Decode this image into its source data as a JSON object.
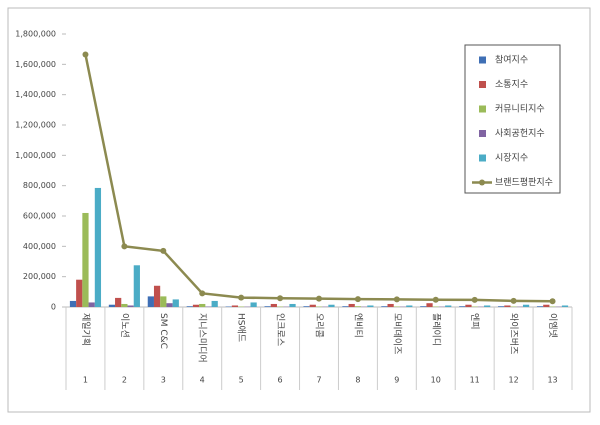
{
  "chart_data": {
    "type": "bar",
    "categories": [
      "제일기획",
      "이노션",
      "SM C&C",
      "지니스미디어",
      "HS애드",
      "인크로스",
      "오리콤",
      "엔비티",
      "모비데이즈",
      "플레이디",
      "엔피",
      "와이즈버즈",
      "이엠넷"
    ],
    "ranks": [
      1,
      2,
      3,
      4,
      5,
      6,
      7,
      8,
      9,
      10,
      11,
      12,
      13
    ],
    "series": [
      {
        "name": "참여지수",
        "color": "#3f6fb5",
        "values": [
          40000,
          15000,
          70000,
          5000,
          3000,
          5000,
          5000,
          5000,
          5000,
          5000,
          5000,
          5000,
          5000
        ]
      },
      {
        "name": "소통지수",
        "color": "#c0504d",
        "values": [
          180000,
          60000,
          140000,
          15000,
          10000,
          20000,
          15000,
          20000,
          20000,
          25000,
          15000,
          10000,
          15000
        ]
      },
      {
        "name": "커뮤니티지수",
        "color": "#9bbb59",
        "values": [
          620000,
          20000,
          70000,
          20000,
          3000,
          3000,
          3000,
          5000,
          3000,
          3000,
          3000,
          3000,
          3000
        ]
      },
      {
        "name": "사회공헌지수",
        "color": "#8064a2",
        "values": [
          30000,
          10000,
          25000,
          3000,
          2000,
          2000,
          2000,
          2000,
          2000,
          2000,
          2000,
          2000,
          2000
        ]
      },
      {
        "name": "시장지수",
        "color": "#4bacc6",
        "values": [
          785000,
          275000,
          50000,
          40000,
          30000,
          20000,
          15000,
          10000,
          10000,
          10000,
          10000,
          15000,
          10000
        ]
      },
      {
        "name": "브랜드평판지수",
        "color": "#8c8a50",
        "type": "line",
        "values": [
          1665000,
          400000,
          370000,
          90000,
          62000,
          58000,
          55000,
          52000,
          50000,
          48000,
          47000,
          40000,
          38000
        ]
      }
    ],
    "ylim": [
      0,
      1800000
    ],
    "yticks": [
      0,
      {
        "value": 200000,
        "label": "200,000"
      },
      {
        "value": 400000,
        "label": "400,000"
      },
      {
        "value": 600000,
        "label": "600,000"
      },
      {
        "value": 800000,
        "label": "800,000"
      },
      {
        "value": 1000000,
        "label": "1,000,000"
      },
      {
        "value": 1200000,
        "label": "1,200,000"
      },
      {
        "value": 1400000,
        "label": "1,400,000"
      },
      {
        "value": 1600000,
        "label": "1,600,000"
      },
      {
        "value": 1800000,
        "label": "1,800,000"
      }
    ],
    "grid": false,
    "legend": "upper right"
  }
}
